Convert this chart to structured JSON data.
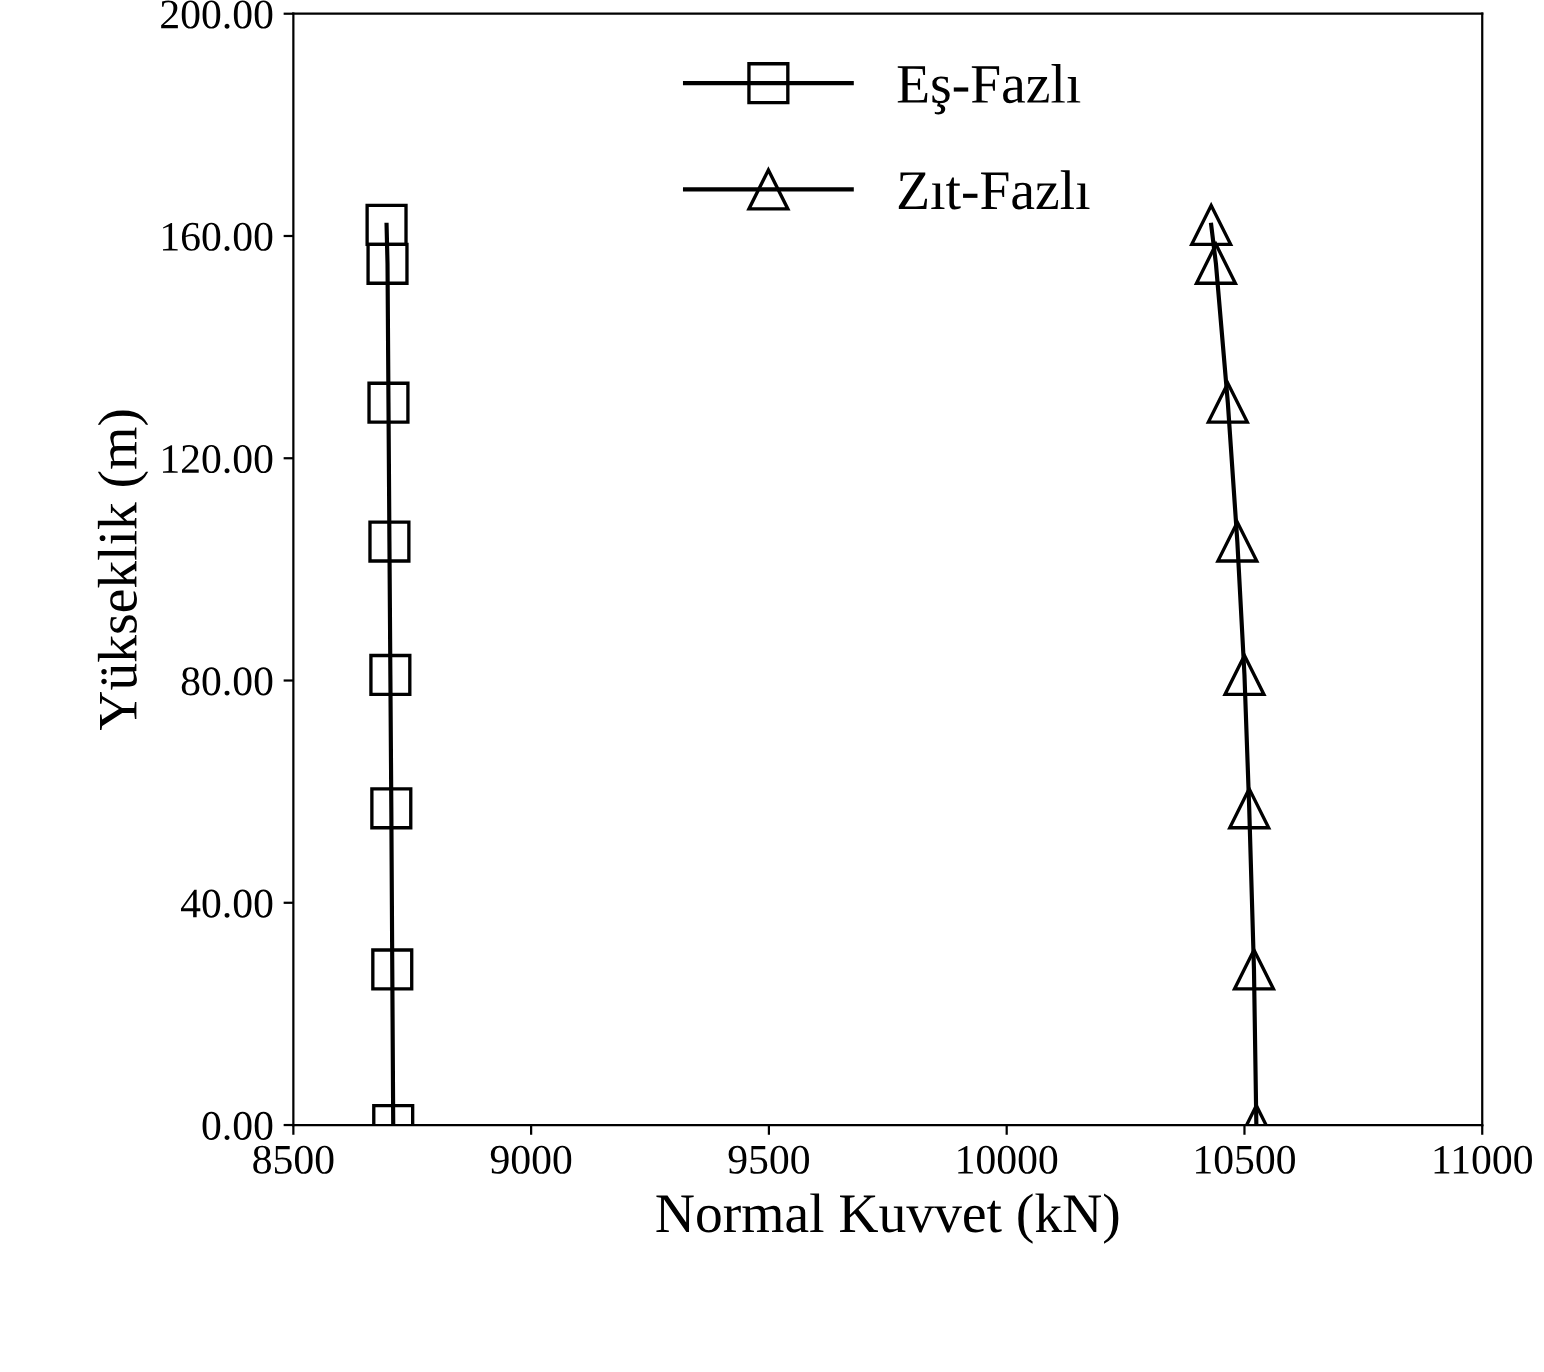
{
  "chart_data": {
    "type": "line",
    "xlabel": "Normal Kuvvet (kN)",
    "ylabel": "Yükseklik (m)",
    "xlim": [
      8500,
      11000
    ],
    "xticks": [
      8500,
      9000,
      9500,
      10000,
      10500,
      11000
    ],
    "ylim": [
      0,
      200
    ],
    "yticks": [
      {
        "value": 0,
        "label": "0.00"
      },
      {
        "value": 40,
        "label": "40.00"
      },
      {
        "value": 80,
        "label": "80.00"
      },
      {
        "value": 120,
        "label": "120.00"
      },
      {
        "value": 160,
        "label": "160.00"
      },
      {
        "value": 200,
        "label": "200.00"
      }
    ],
    "grid": false,
    "legend": "top",
    "line_style": "solid",
    "series": [
      {
        "name": "Eş-Fazlı",
        "color": "#000000",
        "marker": "square",
        "x": [
          8710,
          8708,
          8706,
          8704,
          8702,
          8700,
          8698,
          8696
        ],
        "values": [
          0,
          28,
          57,
          81,
          105,
          130,
          155,
          162
        ]
      },
      {
        "name": "Zıt-Fazlı",
        "color": "#000000",
        "marker": "triangle",
        "x": [
          10525,
          10520,
          10510,
          10500,
          10485,
          10465,
          10440,
          10430
        ],
        "values": [
          0,
          28,
          57,
          81,
          105,
          130,
          155,
          162
        ]
      }
    ]
  }
}
